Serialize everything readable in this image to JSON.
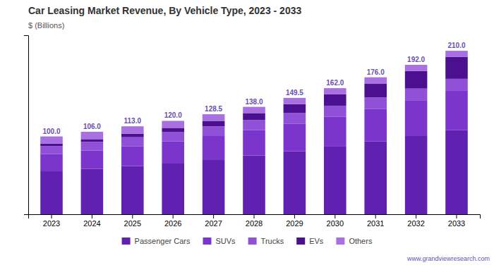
{
  "chart_data": {
    "type": "bar",
    "stacked": true,
    "title": "Car Leasing Market Revenue, By Vehicle Type, 2023 - 2033",
    "ylabel": "$ (Billions)",
    "categories": [
      "2023",
      "2024",
      "2025",
      "2026",
      "2027",
      "2028",
      "2029",
      "2030",
      "2031",
      "2032",
      "2033"
    ],
    "series": [
      {
        "name": "Passenger Cars",
        "color": "#6020b0",
        "values": [
          55.2,
          58.5,
          62.0,
          66.0,
          70.5,
          75.5,
          81.0,
          87.0,
          93.5,
          100.5,
          108.0
        ]
      },
      {
        "name": "SUVs",
        "color": "#7b35cc",
        "values": [
          22.0,
          23.5,
          25.5,
          27.5,
          30.0,
          32.5,
          35.5,
          38.5,
          42.0,
          46.0,
          50.5
        ]
      },
      {
        "name": "Trucks",
        "color": "#9050d8",
        "values": [
          10.5,
          11.0,
          11.5,
          12.0,
          12.5,
          13.0,
          13.5,
          14.0,
          14.5,
          15.0,
          15.5
        ]
      },
      {
        "name": "EVs",
        "color": "#4a1090",
        "values": [
          3.0,
          3.5,
          4.5,
          5.5,
          7.0,
          9.0,
          11.5,
          14.5,
          18.0,
          22.5,
          28.0
        ]
      },
      {
        "name": "Others",
        "color": "#a870e0",
        "values": [
          9.3,
          9.5,
          9.5,
          9.0,
          8.5,
          8.0,
          8.0,
          8.0,
          8.0,
          8.0,
          8.0
        ]
      }
    ],
    "totals": {
      "values": [
        100.0,
        106.0,
        113.0,
        120.0,
        128.5,
        138.0,
        149.5,
        162.0,
        176.0,
        192.0,
        210.0
      ],
      "value_labels": [
        "100.0",
        "106.0",
        "113.0",
        "120.0",
        "128.5",
        "138.0",
        "149.5",
        "162.0",
        "176.0",
        "192.0",
        "210.0"
      ]
    },
    "ylim": [
      0,
      230
    ],
    "yticks": [],
    "tick_labels": "x",
    "grid": false,
    "legend": "bottom",
    "annotations": [
      "www.grandviewresearch.com"
    ]
  }
}
